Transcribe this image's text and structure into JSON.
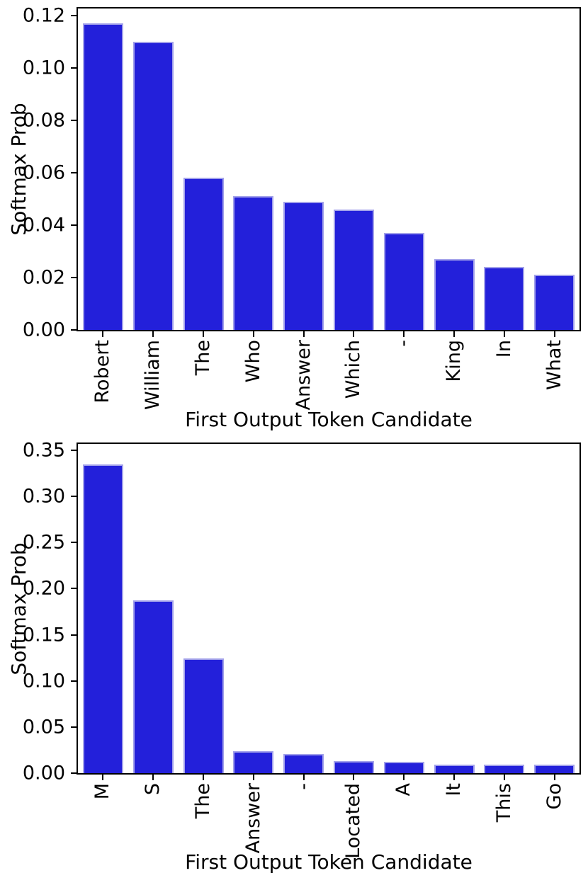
{
  "chart_data": [
    {
      "type": "bar",
      "title": "",
      "xlabel": "First Output Token Candidate",
      "ylabel": "Softmax Prob",
      "categories": [
        "Robert",
        "William",
        "The",
        "Who",
        "Answer",
        "Which",
        "-",
        "King",
        "In",
        "What"
      ],
      "values": [
        0.117,
        0.11,
        0.058,
        0.051,
        0.049,
        0.046,
        0.037,
        0.027,
        0.024,
        0.021
      ],
      "ylim": [
        0,
        0.12
      ],
      "yticks": [
        0.0,
        0.02,
        0.04,
        0.06,
        0.08,
        0.1,
        0.12
      ],
      "ytick_labels": [
        "0.00",
        "0.02",
        "0.04",
        "0.06",
        "0.08",
        "0.10",
        "0.12"
      ],
      "grid": "off",
      "legend": "none",
      "xtick_rotation_deg": 90
    },
    {
      "type": "bar",
      "title": "",
      "xlabel": "First Output Token Candidate",
      "ylabel": "Softmax Prob",
      "categories": [
        "M",
        "S",
        "The",
        "Answer",
        "-",
        "Located",
        "A",
        "It",
        "This",
        "Go"
      ],
      "values": [
        0.335,
        0.187,
        0.124,
        0.024,
        0.021,
        0.013,
        0.012,
        0.009,
        0.009,
        0.009
      ],
      "ylim": [
        0,
        0.35
      ],
      "yticks": [
        0.0,
        0.05,
        0.1,
        0.15,
        0.2,
        0.25,
        0.3,
        0.35
      ],
      "ytick_labels": [
        "0.00",
        "0.05",
        "0.10",
        "0.15",
        "0.20",
        "0.25",
        "0.30",
        "0.35"
      ],
      "grid": "off",
      "legend": "none",
      "xtick_rotation_deg": 90
    }
  ],
  "colors": {
    "bar_fill": "#2320da",
    "bar_edge": "#a2a1ea",
    "axis": "#000000",
    "text": "#000000",
    "background": "#ffffff"
  }
}
